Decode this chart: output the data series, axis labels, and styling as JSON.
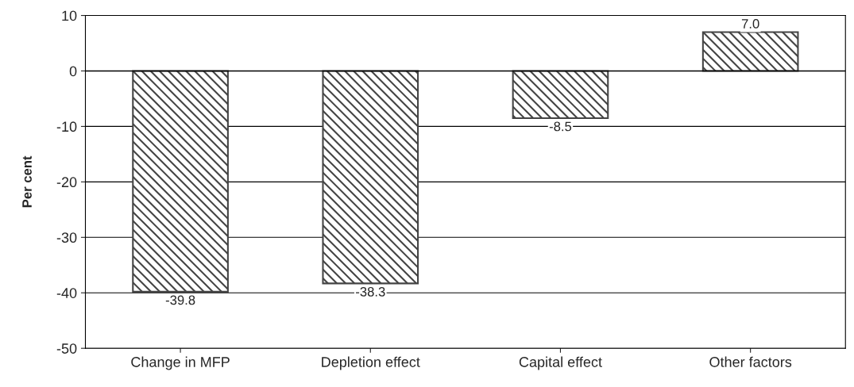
{
  "chart_data": {
    "type": "bar",
    "ylabel": "Per cent",
    "categories": [
      "Change in MFP",
      "Depletion effect",
      "Capital effect",
      "Other factors"
    ],
    "values": [
      -39.8,
      -38.3,
      -8.5,
      7.0
    ],
    "value_labels": [
      "-39.8",
      "-38.3",
      "-8.5",
      "7.0"
    ],
    "color": "#444444",
    "ylim": [
      -50,
      10
    ],
    "yticks": [
      -50,
      -40,
      -30,
      -20,
      -10,
      0,
      10
    ],
    "grid": "y",
    "legend": false
  }
}
